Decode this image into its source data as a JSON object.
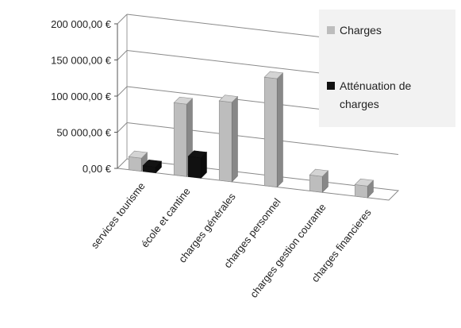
{
  "chart_data": {
    "type": "bar",
    "categories": [
      "services tourisme",
      "école et cantine",
      "charges générales",
      "charges personnel",
      "charges gestion courante",
      "charges financieres"
    ],
    "series": [
      {
        "name": "Charges",
        "values": [
          18000,
          100000,
          110000,
          150000,
          22000,
          16000
        ],
        "color": "#bdbdbd"
      },
      {
        "name": "Atténuation de charges",
        "values": [
          8000,
          28000,
          0,
          0,
          0,
          0
        ],
        "color": "#111111"
      }
    ],
    "y_ticks": [
      "0,00 €",
      "50 000,00 €",
      "100 000,00 €",
      "150 000,00 €",
      "200 000,00 €"
    ],
    "ylim": [
      0,
      200000
    ],
    "legend_position": "right",
    "grid": true
  }
}
